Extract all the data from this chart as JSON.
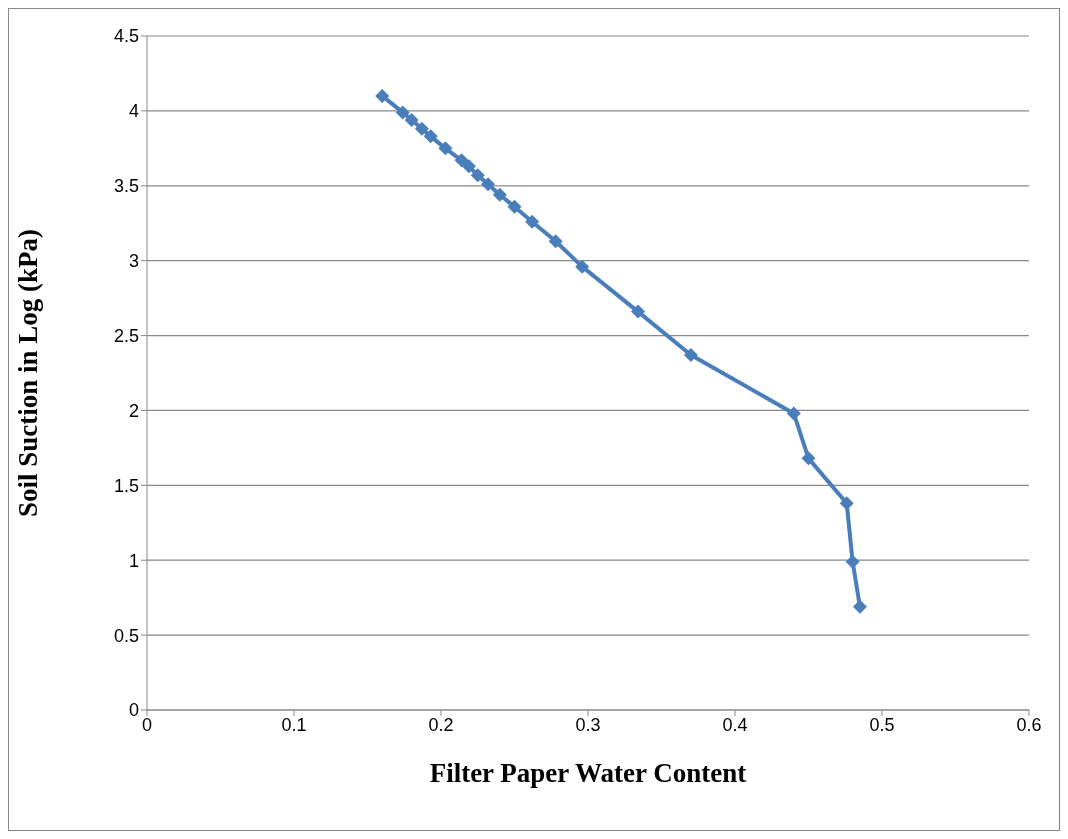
{
  "chart_data": {
    "type": "line",
    "xlabel": "Filter Paper Water Content",
    "ylabel": "Soil Suction in Log (kPa)",
    "x": [
      0.16,
      0.174,
      0.18,
      0.187,
      0.193,
      0.203,
      0.214,
      0.219,
      0.225,
      0.232,
      0.24,
      0.25,
      0.262,
      0.278,
      0.296,
      0.334,
      0.37,
      0.44,
      0.45,
      0.476,
      0.48,
      0.485
    ],
    "series": [
      {
        "color": "#4a7ebb",
        "values": [
          4.1,
          3.99,
          3.94,
          3.88,
          3.83,
          3.75,
          3.67,
          3.63,
          3.57,
          3.51,
          3.44,
          3.36,
          3.26,
          3.13,
          2.96,
          2.66,
          2.37,
          1.98,
          1.68,
          1.38,
          0.99,
          0.69
        ]
      }
    ],
    "xlim": [
      0,
      0.6
    ],
    "xticks": [
      0,
      0.1,
      0.2,
      0.3,
      0.4,
      0.5,
      0.6
    ],
    "ylim": [
      0,
      4.5
    ],
    "yticks": [
      0,
      0.5,
      1,
      1.5,
      2,
      2.5,
      3,
      3.5,
      4,
      4.5
    ],
    "grid": "y",
    "legend": false,
    "marker": "diamond",
    "line_style": "solid"
  }
}
